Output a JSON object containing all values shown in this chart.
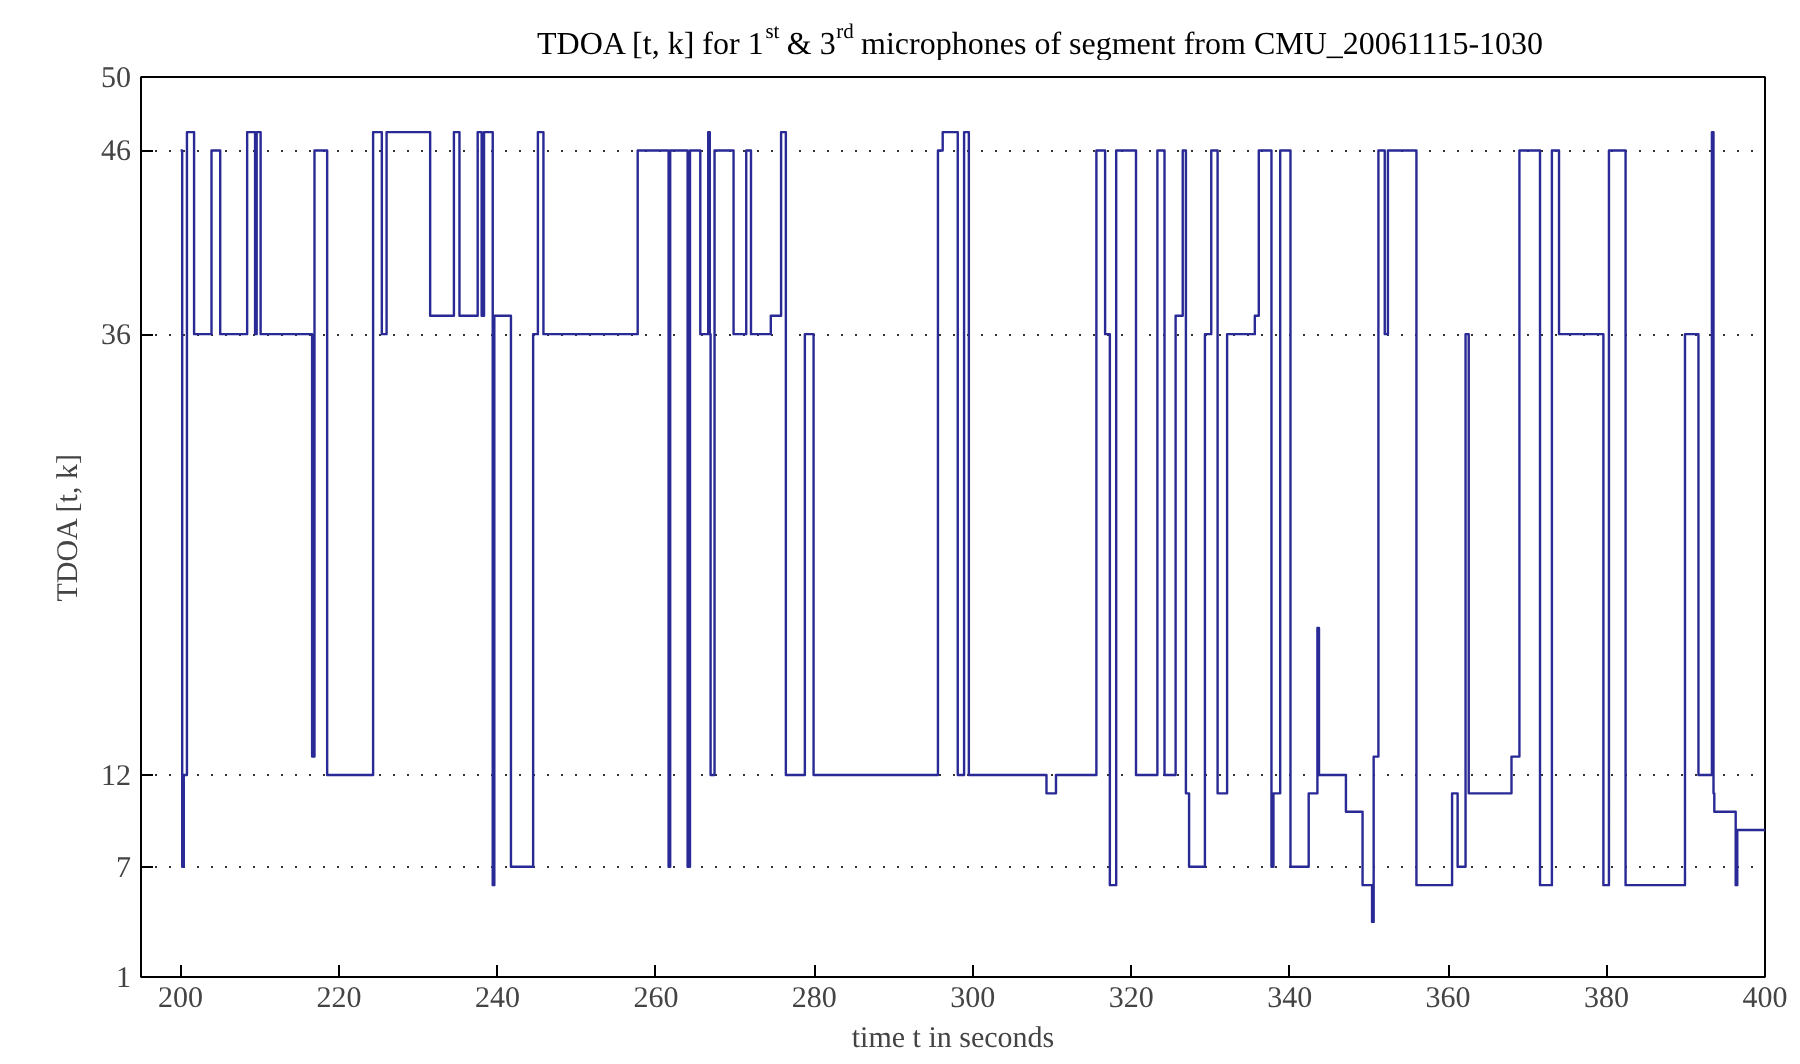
{
  "chart_data": {
    "type": "step",
    "title": "TDOA [t, k] for 1$^{st}$ & 3$^{rd}$ microphones of segment from CMU_20061115-1030",
    "xlabel": "time t in seconds",
    "ylabel": "TDOA [t, k]",
    "xlim": [
      195,
      400
    ],
    "ylim": [
      1,
      50
    ],
    "xticks": [
      200,
      220,
      240,
      260,
      280,
      300,
      320,
      340,
      360,
      380,
      400
    ],
    "yticks": [
      1,
      7,
      12,
      36,
      46,
      50
    ],
    "grid": "y",
    "line_style": "solid",
    "series": [
      {
        "color": "#2a2a96",
        "x": [
          200.0,
          200.2,
          200.4,
          200.8,
          201.7,
          203.9,
          205.0,
          208.4,
          209.4,
          209.6,
          210.1,
          216.6,
          216.9,
          218.5,
          224.3,
          225.4,
          226.0,
          231.5,
          234.5,
          235.2,
          237.5,
          238.0,
          238.3,
          239.4,
          239.6,
          241.7,
          244.5,
          245.1,
          245.8,
          257.7,
          261.6,
          261.8,
          264.0,
          264.3,
          265.6,
          266.6,
          266.8,
          266.9,
          267.4,
          269.8,
          271.4,
          272.0,
          274.5,
          275.8,
          276.4,
          278.8,
          279.9,
          295.6,
          296.2,
          298.1,
          298.9,
          299.5,
          309.3,
          310.5,
          315.6,
          316.7,
          317.3,
          318.1,
          320.6,
          323.3,
          324.2,
          325.6,
          326.5,
          326.9,
          327.3,
          329.3,
          330.1,
          330.9,
          332.1,
          335.6,
          336.1,
          337.7,
          337.95,
          338.1,
          338.8,
          340.1,
          342.4,
          343.5,
          343.7,
          347.1,
          349.2,
          350.4,
          350.6,
          351.2,
          352.0,
          352.4,
          356.0,
          360.5,
          361.2,
          362.2,
          362.6,
          368.0,
          369.0,
          371.6,
          373.1,
          374.0,
          379.6,
          380.3,
          382.4,
          389.9,
          391.6,
          393.3,
          393.5,
          393.6,
          396.3,
          396.5,
          400.0
        ],
        "values": [
          46,
          7,
          12,
          47,
          36,
          46,
          36,
          47,
          36,
          47,
          36,
          13,
          46,
          12,
          47,
          36,
          47,
          37,
          47,
          37,
          47,
          37,
          47,
          6,
          37,
          7,
          36,
          47,
          36,
          46,
          7,
          46,
          7,
          46,
          36,
          47,
          36,
          12,
          46,
          36,
          46,
          36,
          37,
          47,
          12,
          36,
          12,
          46,
          47,
          12,
          47,
          12,
          11,
          12,
          46,
          36,
          6,
          46,
          12,
          46,
          12,
          37,
          46,
          11,
          7,
          36,
          46,
          11,
          36,
          37,
          46,
          7,
          11,
          11,
          46,
          7,
          11,
          20,
          12,
          10,
          6,
          4,
          13,
          46,
          36,
          46,
          6,
          11,
          7,
          36,
          11,
          13,
          46,
          6,
          46,
          36,
          6,
          46,
          6,
          36,
          12,
          47,
          11,
          10,
          6,
          9,
          9
        ]
      }
    ]
  }
}
